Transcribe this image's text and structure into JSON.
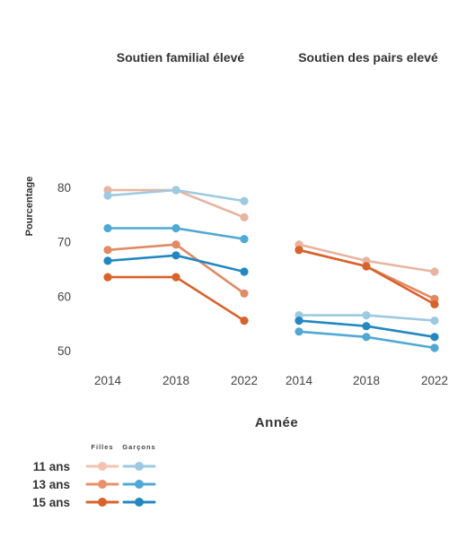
{
  "chart_data": {
    "type": "line",
    "ylabel": "Pourcentage",
    "xlabel": "Année",
    "ylim": [
      46,
      82
    ],
    "yticks": [
      50,
      60,
      70,
      80
    ],
    "categories": [
      "2014",
      "2018",
      "2022"
    ],
    "panels": [
      {
        "title": "Soutien familial élevé",
        "series": [
          {
            "group": "Filles",
            "age": "11 ans",
            "color": "#e8b4a0",
            "values": [
              79.5,
              79.5,
              74.5
            ]
          },
          {
            "group": "Garçons",
            "age": "11 ans",
            "color": "#9ecae1",
            "values": [
              78.5,
              79.5,
              77.5
            ]
          },
          {
            "group": "Filles",
            "age": "13 ans",
            "color": "#e08a65",
            "values": [
              68.5,
              69.5,
              60.5
            ]
          },
          {
            "group": "Garçons",
            "age": "13 ans",
            "color": "#4fa9d4",
            "values": [
              72.5,
              72.5,
              70.5
            ]
          },
          {
            "group": "Filles",
            "age": "15 ans",
            "color": "#d9622b",
            "values": [
              63.5,
              63.5,
              55.5
            ]
          },
          {
            "group": "Garçons",
            "age": "15 ans",
            "color": "#2387c2",
            "values": [
              66.5,
              67.5,
              64.5
            ]
          }
        ]
      },
      {
        "title": "Soutien des pairs elevé",
        "series": [
          {
            "group": "Filles",
            "age": "11 ans",
            "color": "#e8b4a0",
            "values": [
              69.5,
              66.5,
              64.5
            ]
          },
          {
            "group": "Garçons",
            "age": "11 ans",
            "color": "#9ecae1",
            "values": [
              56.5,
              56.5,
              55.5
            ]
          },
          {
            "group": "Filles",
            "age": "13 ans",
            "color": "#e08a65",
            "values": [
              68.5,
              65.5,
              59.5
            ]
          },
          {
            "group": "Garçons",
            "age": "13 ans",
            "color": "#4fa9d4",
            "values": [
              53.5,
              52.5,
              50.5
            ]
          },
          {
            "group": "Filles",
            "age": "15 ans",
            "color": "#d9622b",
            "values": [
              68.5,
              65.5,
              58.5
            ]
          },
          {
            "group": "Garçons",
            "age": "15 ans",
            "color": "#2387c2",
            "values": [
              55.5,
              54.5,
              52.5
            ]
          }
        ]
      }
    ],
    "legend": {
      "headers": [
        "Filles",
        "Garçons"
      ],
      "rows": [
        {
          "label": "11 ans",
          "filles_color": "#f4c3b0",
          "garcons_color": "#9ecae1"
        },
        {
          "label": "13 ans",
          "filles_color": "#e8906a",
          "garcons_color": "#4fa9d4"
        },
        {
          "label": "15 ans",
          "filles_color": "#d9622b",
          "garcons_color": "#2387c2"
        }
      ]
    }
  }
}
